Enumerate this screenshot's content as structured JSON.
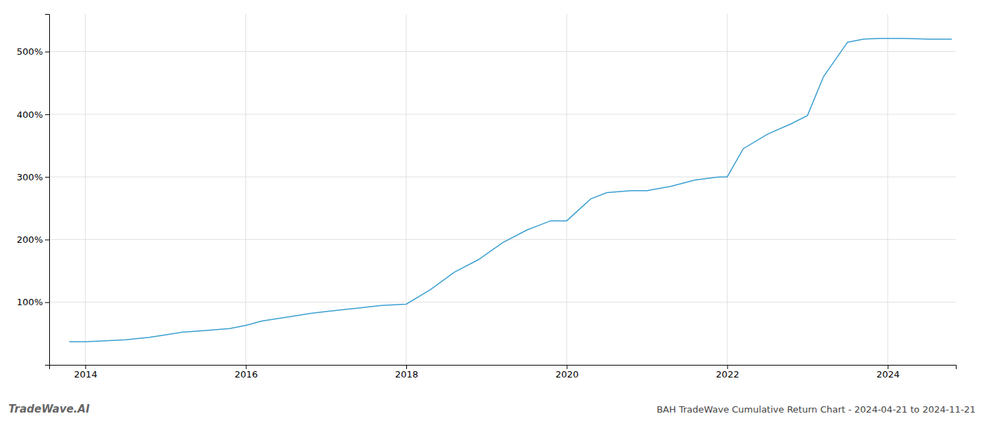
{
  "chart_data": {
    "type": "line",
    "title": "BAH TradeWave Cumulative Return Chart - 2024-04-21 to 2024-11-21",
    "annotations": [
      "TradeWave.AI"
    ],
    "color": "#3a9fd1",
    "grid": true,
    "xlim": [
      2013.55,
      2024.85
    ],
    "xticks": [
      2014,
      2016,
      2018,
      2020,
      2022,
      2024
    ],
    "ylim": [
      0,
      560
    ],
    "yticks": [
      {
        "value": 100,
        "label": "100%"
      },
      {
        "value": 200,
        "label": "200%"
      },
      {
        "value": 300,
        "label": "300%"
      },
      {
        "value": 400,
        "label": "400%"
      },
      {
        "value": 500,
        "label": "500%"
      }
    ],
    "x": [
      2013.8,
      2014.0,
      2014.2,
      2014.5,
      2014.8,
      2015.0,
      2015.2,
      2015.5,
      2015.8,
      2016.0,
      2016.2,
      2016.5,
      2016.8,
      2017.0,
      2017.2,
      2017.5,
      2017.7,
      2018.0,
      2018.3,
      2018.6,
      2018.9,
      2019.2,
      2019.5,
      2019.8,
      2020.0,
      2020.3,
      2020.5,
      2020.8,
      2021.0,
      2021.3,
      2021.6,
      2021.9,
      2022.0,
      2022.2,
      2022.5,
      2022.8,
      2023.0,
      2023.2,
      2023.5,
      2023.7,
      2023.9,
      2024.0,
      2024.2,
      2024.5,
      2024.8
    ],
    "values": [
      37,
      37,
      38,
      40,
      44,
      48,
      52,
      55,
      58,
      63,
      70,
      76,
      82,
      85,
      88,
      92,
      95,
      97,
      120,
      148,
      168,
      195,
      215,
      230,
      230,
      265,
      275,
      278,
      278,
      285,
      295,
      300,
      300,
      345,
      368,
      385,
      398,
      460,
      515,
      520,
      521,
      521,
      521,
      520,
      520
    ]
  }
}
